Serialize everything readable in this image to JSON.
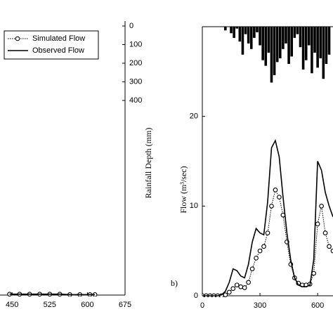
{
  "chart_data": [
    {
      "type": "line",
      "x": [
        445,
        465,
        485,
        505,
        525,
        545,
        565,
        585,
        605,
        615
      ],
      "series": [
        {
          "name": "Simulated Flow",
          "color": "#000000",
          "style": "dotted",
          "marker": "circle",
          "values": [
            0.1,
            0.1,
            0.1,
            0.1,
            0.1,
            0.1,
            0.05,
            0.05,
            0.05,
            0.05
          ]
        },
        {
          "name": "Observed Flow",
          "color": "#000000",
          "style": "solid",
          "values": [
            0.1,
            0.1,
            0.1,
            0.1,
            0.1,
            0.1,
            0.05,
            0.05,
            0.05,
            0.05
          ]
        }
      ],
      "xlim": [
        426,
        675
      ],
      "xticks": [
        450,
        525,
        600,
        675
      ],
      "ylim": [
        0,
        30
      ],
      "y2label": "Rainfall Depth (mm)",
      "y2lim": [
        0,
        1445
      ],
      "y2_inverted": true,
      "y2ticks": [
        0,
        100,
        200,
        300,
        400
      ],
      "legend": "upper left"
    },
    {
      "type": "line",
      "label": "b)",
      "ylabel": "Flow (m³/sec)",
      "x": [
        0,
        20,
        40,
        60,
        80,
        100,
        120,
        140,
        160,
        180,
        200,
        220,
        240,
        260,
        280,
        300,
        320,
        340,
        360,
        380,
        400,
        420,
        440,
        460,
        480,
        500,
        520,
        540,
        560,
        580,
        600,
        620,
        640,
        660,
        680
      ],
      "series": [
        {
          "name": "Simulated Flow",
          "color": "#000000",
          "style": "dotted",
          "marker": "circle",
          "values": [
            0,
            0,
            0,
            0,
            0,
            0,
            0.1,
            0.4,
            0.8,
            1.2,
            1.0,
            0.9,
            1.5,
            3.0,
            4.2,
            5.0,
            5.5,
            7.0,
            10.0,
            11.8,
            11.0,
            9.0,
            6.0,
            3.5,
            2.0,
            1.4,
            1.2,
            1.2,
            1.3,
            2.5,
            8.0,
            10.0,
            7.0,
            5.5,
            5.0
          ]
        },
        {
          "name": "Observed Flow",
          "color": "#000000",
          "style": "solid",
          "values": [
            0,
            0,
            0,
            0,
            0,
            0.1,
            0.5,
            1.5,
            3.0,
            2.8,
            2.2,
            2.0,
            3.5,
            6.0,
            7.5,
            7.0,
            6.8,
            10.5,
            16.5,
            17.3,
            15.5,
            11.0,
            7.0,
            4.0,
            2.0,
            1.2,
            1.0,
            1.0,
            1.2,
            4.0,
            15.0,
            14.0,
            11.5,
            10.0,
            8.8
          ]
        },
        {
          "type": "bar",
          "axis": "y2",
          "color": "#000000",
          "x": [
            120,
            135,
            150,
            165,
            180,
            195,
            210,
            225,
            240,
            255,
            270,
            285,
            300,
            315,
            330,
            345,
            360,
            375,
            390,
            405,
            420,
            435,
            450,
            465,
            480,
            495,
            510,
            525,
            540,
            555,
            570,
            585,
            600,
            615,
            630,
            645,
            660
          ],
          "values": [
            20,
            0,
            35,
            60,
            10,
            80,
            150,
            40,
            90,
            120,
            60,
            30,
            100,
            180,
            210,
            140,
            300,
            260,
            190,
            170,
            120,
            90,
            200,
            160,
            60,
            40,
            110,
            230,
            180,
            100,
            250,
            140,
            220,
            170,
            280,
            200,
            150
          ]
        }
      ],
      "xlim": [
        0,
        680
      ],
      "xticks": [
        0,
        300,
        600
      ],
      "ylim": [
        0,
        30
      ],
      "yticks": [
        0,
        10,
        20
      ],
      "y2lim": [
        0,
        1445
      ],
      "y2_inverted": true
    }
  ]
}
